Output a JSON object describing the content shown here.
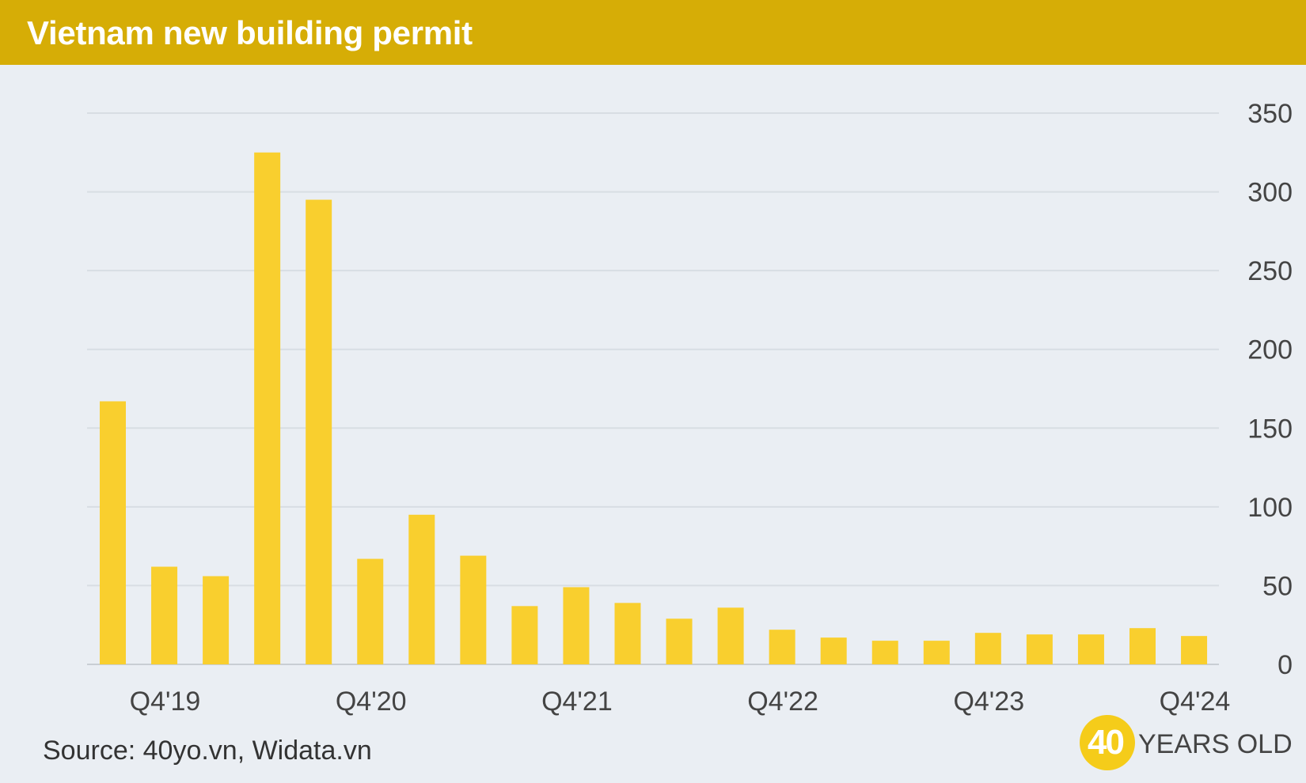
{
  "header": {
    "title": "Vietnam new building permit"
  },
  "footer": {
    "source": "Source: 40yo.vn, Widata.vn",
    "logo_number": "40",
    "logo_text": "YEARS OLD"
  },
  "colors": {
    "header_bg": "#d6ad06",
    "bar": "#f9cf2e",
    "background": "#eaeef3",
    "grid": "#d8dde3"
  },
  "chart_data": {
    "type": "bar",
    "title": "Vietnam new building permit",
    "xlabel": "",
    "ylabel": "",
    "categories": [
      "Q4'19",
      "Q1'20",
      "Q2'20",
      "Q3'20",
      "Q4'20",
      "Q1'21",
      "Q2'21",
      "Q3'21",
      "Q4'21",
      "Q1'22",
      "Q2'22",
      "Q3'22",
      "Q4'22",
      "Q1'23",
      "Q2'23",
      "Q3'23",
      "Q4'23",
      "Q1'24",
      "Q2'24",
      "Q3'24",
      "Q4'24",
      "Q1'25"
    ],
    "x_tick_labels": [
      "Q4'19",
      "",
      "",
      "",
      "Q4'20",
      "",
      "",
      "",
      "Q4'21",
      "",
      "",
      "",
      "Q4'22",
      "",
      "",
      "",
      "Q4'23",
      "",
      "",
      "",
      "Q4'24",
      ""
    ],
    "values": [
      167,
      62,
      56,
      325,
      295,
      67,
      95,
      69,
      37,
      49,
      39,
      29,
      36,
      22,
      17,
      15,
      15,
      20,
      19,
      19,
      23,
      18
    ],
    "ylim": [
      0,
      350
    ],
    "yticks": [
      0,
      50,
      100,
      150,
      200,
      250,
      300,
      350
    ],
    "y_axis_position": "right",
    "grid": true,
    "legend": "none"
  }
}
